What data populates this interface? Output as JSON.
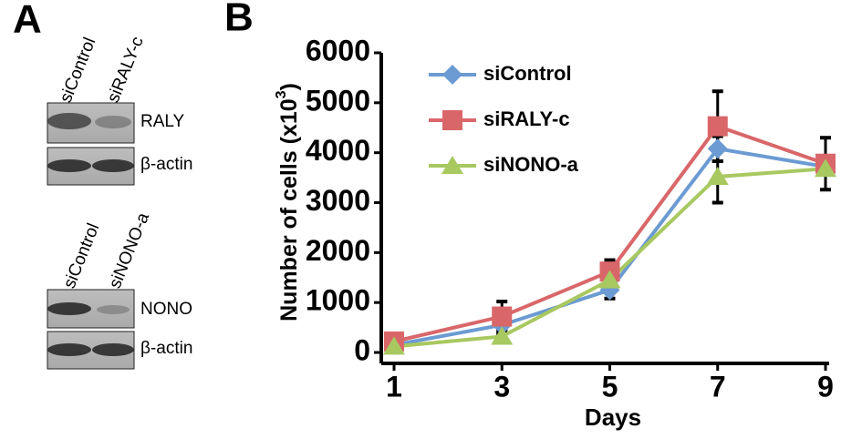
{
  "panel_a": {
    "label": "A",
    "blot1": {
      "lanes": [
        "siControl",
        "siRALY-c"
      ],
      "target": "RALY",
      "loading": "β-actin"
    },
    "blot2": {
      "lanes": [
        "siControl",
        "siNONO-a"
      ],
      "target": "NONO",
      "loading": "β-actin"
    }
  },
  "chart_data": {
    "type": "line",
    "panel_label": "B",
    "x_label": "Days",
    "y_label": [
      "Number of cells (x10",
      "3",
      ")"
    ],
    "x": [
      1,
      3,
      5,
      7,
      9
    ],
    "xlim": [
      1,
      9
    ],
    "xticks": [
      1,
      3,
      5,
      7,
      9
    ],
    "ylim": [
      0,
      6000
    ],
    "yticks": [
      0,
      1000,
      2000,
      3000,
      4000,
      5000,
      6000
    ],
    "grid": false,
    "legend": "upper left",
    "series": [
      {
        "name": "siControl",
        "color": "#6b9bd2",
        "marker": "diamond",
        "values": [
          150,
          550,
          1250,
          4080,
          3720
        ],
        "errors": [
          40,
          80,
          170,
          250,
          100
        ]
      },
      {
        "name": "siRALY-c",
        "color": "#d9676a",
        "marker": "square",
        "values": [
          220,
          720,
          1620,
          4530,
          3780
        ],
        "errors": [
          50,
          300,
          230,
          700,
          520
        ]
      },
      {
        "name": "siNONO-a",
        "color": "#a8c860",
        "marker": "triangle",
        "values": [
          120,
          320,
          1450,
          3520,
          3680
        ],
        "errors": [
          40,
          60,
          150,
          520,
          100
        ]
      }
    ]
  }
}
